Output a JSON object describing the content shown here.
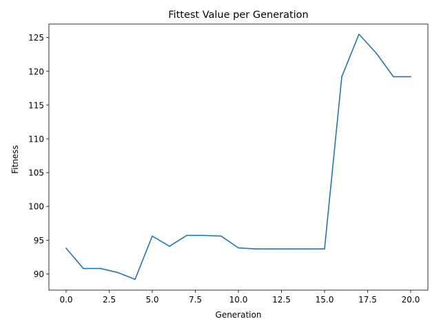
{
  "chart_data": {
    "type": "line",
    "title": "Fittest Value per Generation",
    "xlabel": "Generation",
    "ylabel": "Fitness",
    "xlim": [
      -1.0,
      21.0
    ],
    "ylim": [
      87.6,
      127.0
    ],
    "xticks": [
      0.0,
      2.5,
      5.0,
      7.5,
      10.0,
      12.5,
      15.0,
      17.5,
      20.0
    ],
    "xtick_labels": [
      "0.0",
      "2.5",
      "5.0",
      "7.5",
      "10.0",
      "12.5",
      "15.0",
      "17.5",
      "20.0"
    ],
    "yticks": [
      90,
      95,
      100,
      105,
      110,
      115,
      120,
      125
    ],
    "ytick_labels": [
      "90",
      "95",
      "100",
      "105",
      "110",
      "115",
      "120",
      "125"
    ],
    "grid": false,
    "series": [
      {
        "color": "#1f77b4",
        "x": [
          0,
          1,
          2,
          3,
          4,
          5,
          6,
          7,
          8,
          9,
          10,
          11,
          12,
          13,
          14,
          15,
          16,
          17,
          18,
          19,
          20
        ],
        "y": [
          93.8,
          90.8,
          90.8,
          90.2,
          89.2,
          95.6,
          94.1,
          95.7,
          95.7,
          95.6,
          93.85,
          93.7,
          93.7,
          93.7,
          93.7,
          93.7,
          119.2,
          125.5,
          122.7,
          119.2,
          119.2
        ]
      }
    ]
  }
}
